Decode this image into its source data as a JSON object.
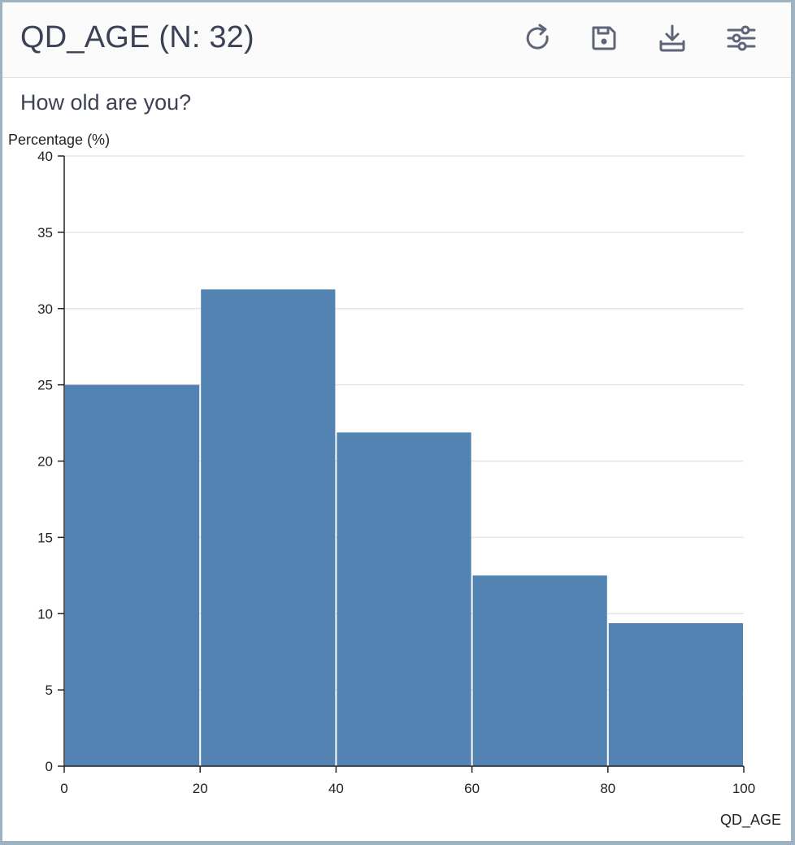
{
  "header": {
    "title": "QD_AGE (N: 32)",
    "tools": [
      {
        "icon": "refresh-icon"
      },
      {
        "icon": "save-icon"
      },
      {
        "icon": "download-icon"
      },
      {
        "icon": "settings-sliders-icon"
      }
    ]
  },
  "question": "How old are you?",
  "colors": {
    "bar": "#5383b3",
    "grid": "#e6e6e6",
    "icon": "#5f6478"
  },
  "chart_data": {
    "type": "bar",
    "bins": [
      [
        0,
        20
      ],
      [
        20,
        40
      ],
      [
        40,
        60
      ],
      [
        60,
        80
      ],
      [
        80,
        100
      ]
    ],
    "values": [
      25,
      31.25,
      21.875,
      12.5,
      9.375
    ],
    "xlabel": "QD_AGE",
    "ylabel": "Percentage (%)",
    "xlim": [
      0,
      100
    ],
    "ylim": [
      0,
      40
    ],
    "xticks": [
      "0",
      "20",
      "40",
      "60",
      "80",
      "100"
    ],
    "yticks": [
      "0",
      "5",
      "10",
      "15",
      "20",
      "25",
      "30",
      "35",
      "40"
    ],
    "grid": true
  }
}
